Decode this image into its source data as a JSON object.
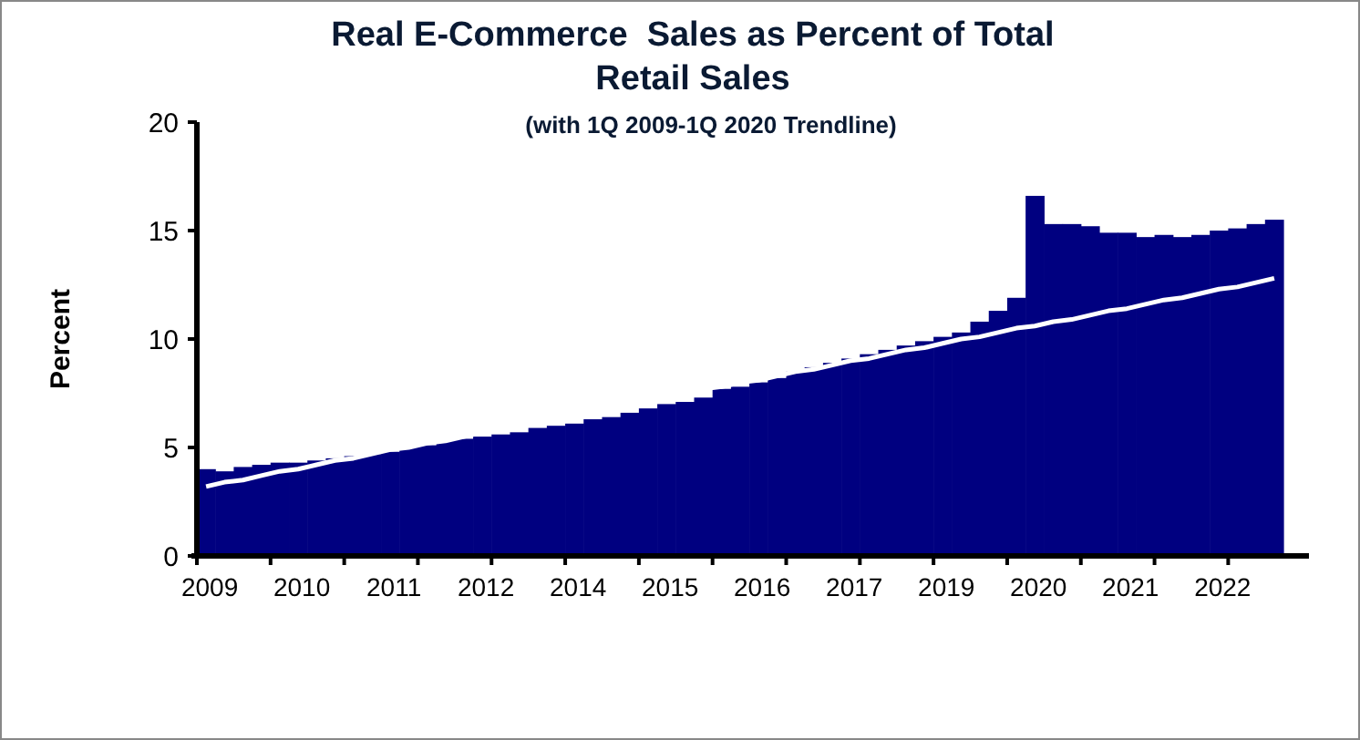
{
  "chart_data": {
    "type": "bar",
    "title": "Real E-Commerce  Sales as Percent of Total Retail Sales",
    "subtitle": "(with 1Q 2009-1Q 2020 Trendline)",
    "ylabel": "Percent",
    "categories": [
      "2009",
      null,
      null,
      null,
      null,
      "2010",
      null,
      null,
      null,
      null,
      "2011",
      null,
      null,
      null,
      null,
      "2012",
      null,
      null,
      null,
      null,
      "2014",
      null,
      null,
      null,
      null,
      "2015",
      null,
      null,
      null,
      null,
      "2016",
      null,
      null,
      null,
      null,
      "2017",
      null,
      null,
      null,
      null,
      "2019",
      null,
      null,
      null,
      null,
      "2020",
      null,
      null,
      null,
      null,
      "2021",
      null,
      null,
      null,
      null,
      "2022",
      null,
      null,
      null
    ],
    "series": [
      {
        "color": "#000080",
        "values": [
          4.0,
          3.9,
          4.1,
          4.2,
          4.3,
          4.3,
          4.4,
          4.5,
          4.6,
          4.7,
          4.8,
          5.0,
          5.1,
          5.3,
          5.4,
          5.5,
          5.6,
          5.7,
          5.9,
          6.0,
          6.1,
          6.3,
          6.4,
          6.6,
          6.8,
          7.0,
          7.1,
          7.3,
          7.7,
          7.8,
          8.0,
          8.2,
          8.5,
          8.7,
          8.9,
          9.1,
          9.3,
          9.5,
          9.7,
          9.9,
          10.1,
          10.3,
          10.8,
          11.3,
          11.9,
          16.6,
          15.3,
          15.3,
          15.2,
          14.9,
          14.9,
          14.7,
          14.8,
          14.7,
          14.8,
          15.0,
          15.1,
          15.3,
          15.5
        ]
      },
      {
        "type": "line",
        "color": "#ffffff",
        "values": [
          3.2,
          3.4,
          3.5,
          3.7,
          3.9,
          4.0,
          4.2,
          4.4,
          4.5,
          4.7,
          4.9,
          5.0,
          5.2,
          5.3,
          5.5,
          5.7,
          5.8,
          6.0,
          6.2,
          6.3,
          6.5,
          6.7,
          6.8,
          7.0,
          7.2,
          7.3,
          7.5,
          7.7,
          7.8,
          8.0,
          8.1,
          8.3,
          8.5,
          8.6,
          8.8,
          9.0,
          9.1,
          9.3,
          9.5,
          9.6,
          9.8,
          10.0,
          10.1,
          10.3,
          10.5,
          10.6,
          10.8,
          10.9,
          11.1,
          11.3,
          11.4,
          11.6,
          11.8,
          11.9,
          12.1,
          12.3,
          12.4,
          12.6,
          12.8
        ]
      }
    ],
    "ylim": [
      0,
      20
    ],
    "yticks": [
      0,
      5,
      10,
      15,
      20
    ],
    "grid": false
  }
}
